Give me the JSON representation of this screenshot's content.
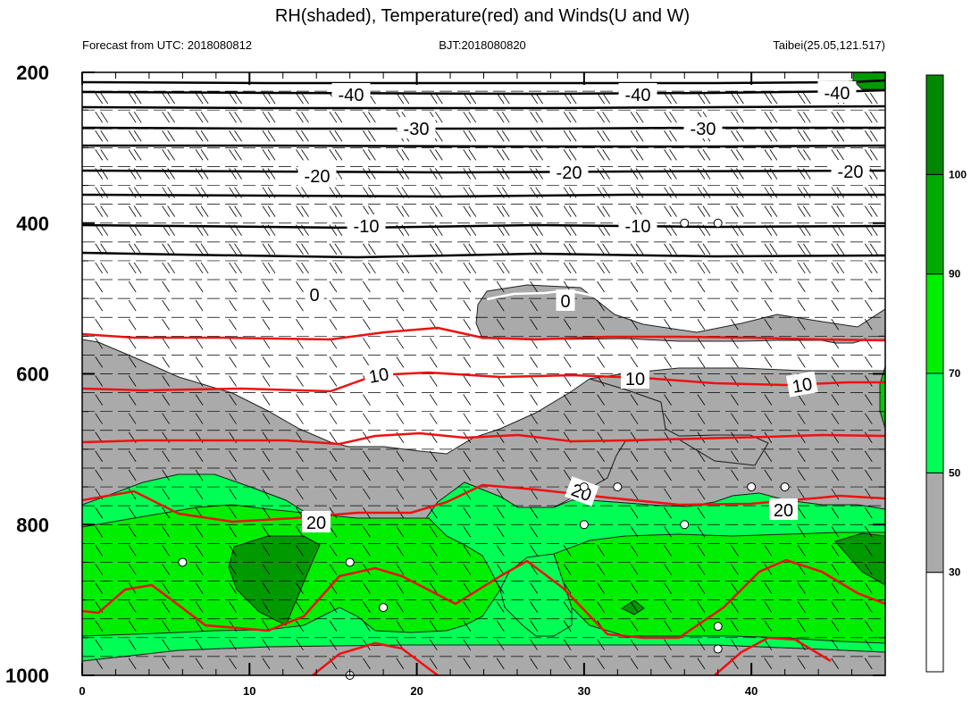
{
  "chart_data": {
    "type": "contour",
    "title": "RH(shaded), Temperature(red) and Winds(U and W)",
    "subtitle_left": "Forecast from UTC: 2018080812",
    "subtitle_center": "BJT:2018080820",
    "subtitle_right": "Taibei(25.05,121.517)",
    "x_axis": {
      "range": [
        0,
        48
      ],
      "ticks": [
        0,
        10,
        20,
        30,
        40
      ]
    },
    "y_axis": {
      "range": [
        1000,
        200
      ],
      "ticks": [
        200,
        400,
        600,
        800,
        1000
      ],
      "inverted": true
    },
    "colorbar": {
      "levels": [
        30,
        50,
        70,
        90,
        100
      ],
      "colors": [
        "#ffffff",
        "#aaaaaa",
        "#00ff55",
        "#00ee00",
        "#00aa00",
        "#008800"
      ]
    },
    "temperature_contours": [
      {
        "value": -40,
        "labels": [
          "-40",
          "-40",
          "-40"
        ]
      },
      {
        "value": -30,
        "labels": [
          "-30",
          "-30"
        ]
      },
      {
        "value": -20,
        "labels": [
          "-20",
          "-20",
          "-20"
        ]
      },
      {
        "value": -10,
        "labels": [
          "-10",
          "-10"
        ]
      },
      {
        "value": 0,
        "labels": [
          "0",
          "0"
        ]
      },
      {
        "value": 10,
        "labels": [
          "10",
          "10",
          "10"
        ]
      },
      {
        "value": 20,
        "labels": [
          "20",
          "20",
          "20"
        ]
      }
    ],
    "calm_points": [
      [
        36,
        400
      ],
      [
        38,
        400
      ],
      [
        30,
        750
      ],
      [
        32,
        750
      ],
      [
        40,
        750
      ],
      [
        42,
        750
      ],
      [
        30,
        800
      ],
      [
        36,
        800
      ],
      [
        6,
        850
      ],
      [
        16,
        850
      ],
      [
        18,
        910
      ],
      [
        38,
        935
      ],
      [
        38,
        965
      ],
      [
        16,
        1000
      ]
    ]
  }
}
